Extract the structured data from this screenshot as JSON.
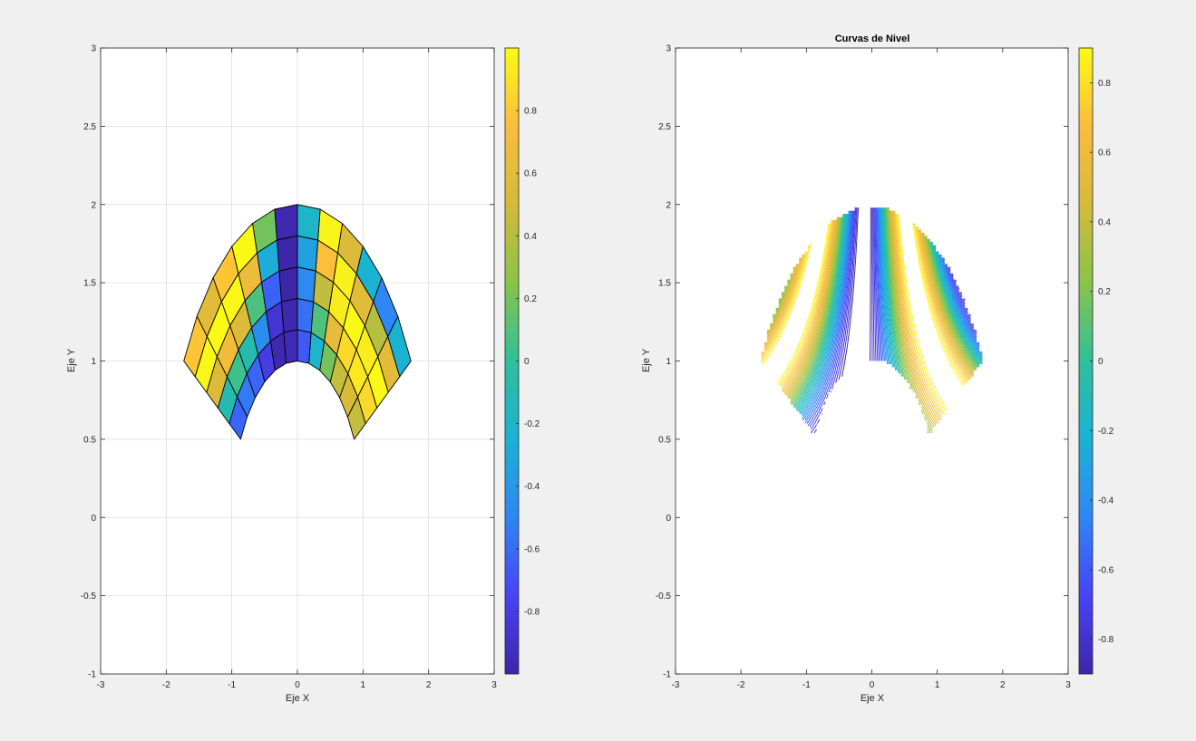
{
  "chart_data": [
    {
      "type": "surface",
      "title": "",
      "xlabel": "Eje X",
      "ylabel": "Eje Y",
      "xlim": [
        -3,
        3
      ],
      "ylim": [
        -1,
        3
      ],
      "xticks": [
        "-3",
        "-2",
        "-1",
        "0",
        "1",
        "2",
        "3"
      ],
      "yticks": [
        "-1",
        "-0.5",
        "0",
        "0.5",
        "1",
        "1.5",
        "2",
        "2.5",
        "3"
      ],
      "grid": true,
      "surface": {
        "r_range": [
          1,
          2
        ],
        "theta_deg_range": [
          30,
          150
        ],
        "r_steps": 5,
        "theta_steps": 12
      },
      "colorbar": {
        "range": [
          -1,
          1
        ],
        "ticks": [
          "-0.8",
          "-0.6",
          "-0.4",
          "-0.2",
          "0",
          "0.2",
          "0.4",
          "0.6",
          "0.8"
        ],
        "colormap": [
          "#3e26a8",
          "#4743f8",
          "#2f86f4",
          "#1ab2d6",
          "#2ec09a",
          "#89c44a",
          "#d4bb38",
          "#fbbc3c",
          "#f9fb15"
        ]
      }
    },
    {
      "type": "contour",
      "title": "Curvas de Nivel",
      "xlabel": "Eje X",
      "ylabel": "Eje Y",
      "xlim": [
        -3,
        3
      ],
      "ylim": [
        -1,
        3
      ],
      "xticks": [
        "-3",
        "-2",
        "-1",
        "0",
        "1",
        "2",
        "3"
      ],
      "yticks": [
        "-1",
        "-0.5",
        "0",
        "0.5",
        "1",
        "1.5",
        "2",
        "2.5",
        "3"
      ],
      "grid": false,
      "levels": 40,
      "colorbar": {
        "range": [
          -0.9,
          0.9
        ],
        "ticks": [
          "-0.8",
          "-0.6",
          "-0.4",
          "-0.2",
          "0",
          "0.2",
          "0.4",
          "0.6",
          "0.8"
        ],
        "colormap": [
          "#3e26a8",
          "#4743f8",
          "#2f86f4",
          "#1ab2d6",
          "#2ec09a",
          "#89c44a",
          "#d4bb38",
          "#fbbc3c",
          "#f9fb15"
        ]
      }
    }
  ]
}
